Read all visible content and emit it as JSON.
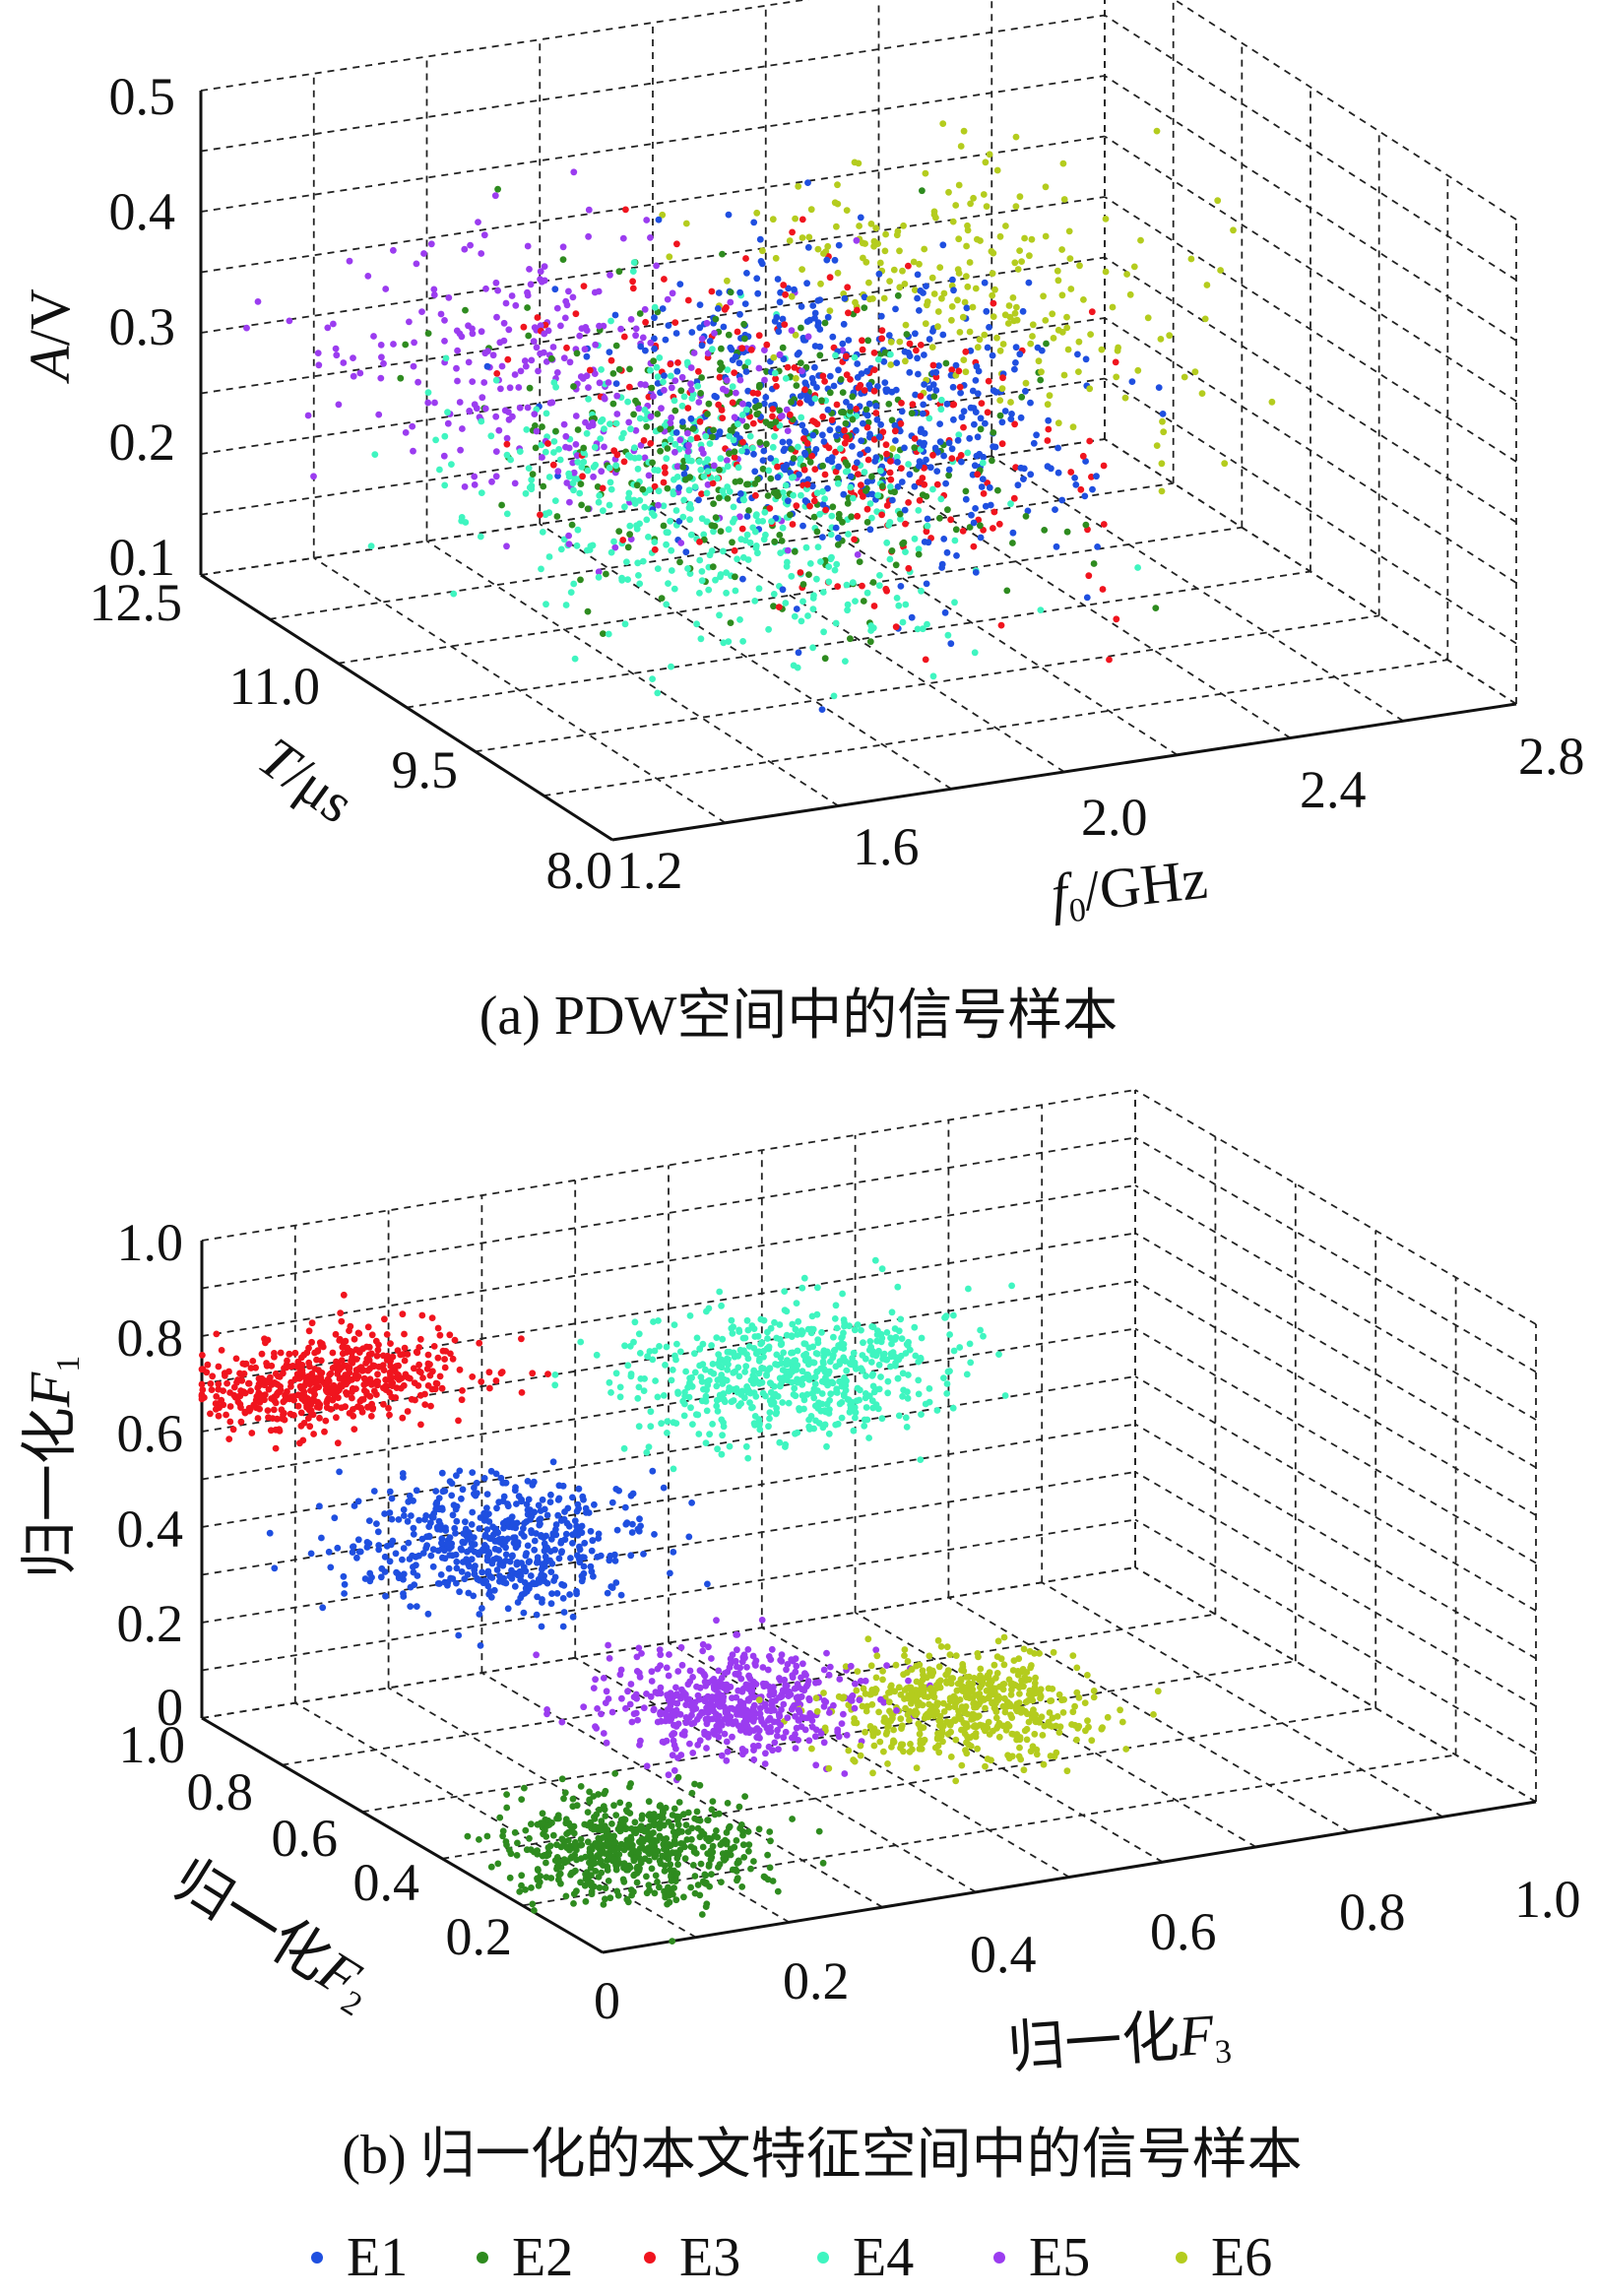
{
  "series": [
    {
      "key": "E1",
      "name": "E1",
      "color": "#1f4fe0"
    },
    {
      "key": "E2",
      "name": "E2",
      "color": "#2e8b1f"
    },
    {
      "key": "E3",
      "name": "E3",
      "color": "#f0141e"
    },
    {
      "key": "E4",
      "name": "E4",
      "color": "#3ff5c0"
    },
    {
      "key": "E5",
      "name": "E5",
      "color": "#9b3cf0"
    },
    {
      "key": "E6",
      "name": "E6",
      "color": "#b4cc1e"
    }
  ],
  "chart_data": [
    {
      "type": "scatter",
      "panel": "a",
      "caption": "(a) PDW空间中的信号样本",
      "x_axis": {
        "symbol": "f",
        "sub": "0",
        "unit": "/GHz",
        "ticks": [
          "1.2",
          "1.6",
          "2.0",
          "2.4",
          "2.8"
        ],
        "range": [
          1.2,
          2.8
        ]
      },
      "y_axis": {
        "symbol": "T",
        "unit": "/μs",
        "ticks": [
          "8.0",
          "9.5",
          "11.0",
          "12.5"
        ],
        "range": [
          8.0,
          12.5
        ]
      },
      "z_axis": {
        "symbol": "A",
        "unit": "/V",
        "ticks": [
          "0.1",
          "0.2",
          "0.3",
          "0.4",
          "0.5"
        ],
        "range": [
          0.1,
          0.5
        ]
      },
      "clusters": [
        {
          "series": "E1",
          "center": [
            2.05,
            10.6,
            0.27
          ],
          "spread": [
            0.16,
            0.8,
            0.045
          ],
          "n": 520
        },
        {
          "series": "E2",
          "center": [
            1.85,
            10.3,
            0.27
          ],
          "spread": [
            0.2,
            0.9,
            0.045
          ],
          "n": 330
        },
        {
          "series": "E3",
          "center": [
            1.95,
            10.4,
            0.27
          ],
          "spread": [
            0.18,
            0.9,
            0.045
          ],
          "n": 300
        },
        {
          "series": "E4",
          "center": [
            1.7,
            10.0,
            0.25
          ],
          "spread": [
            0.18,
            0.8,
            0.045
          ],
          "n": 500
        },
        {
          "series": "E5",
          "center": [
            1.65,
            11.2,
            0.29
          ],
          "spread": [
            0.18,
            0.8,
            0.045
          ],
          "n": 330
        },
        {
          "series": "E6",
          "center": [
            2.4,
            11.6,
            0.3
          ],
          "spread": [
            0.16,
            0.7,
            0.04
          ],
          "n": 240
        }
      ]
    },
    {
      "type": "scatter",
      "panel": "b",
      "caption": "(b) 归一化的本文特征空间中的信号样本",
      "x_axis": {
        "prefix": "归一化",
        "symbol": "F",
        "sub": "3",
        "ticks": [
          "0",
          "0.2",
          "0.4",
          "0.6",
          "0.8",
          "1.0"
        ],
        "range": [
          0,
          1
        ]
      },
      "y_axis": {
        "prefix": "归一化",
        "symbol": "F",
        "sub": "2",
        "ticks": [
          "0",
          "0.2",
          "0.4",
          "0.6",
          "0.8",
          "1.0"
        ],
        "range": [
          0,
          1
        ]
      },
      "z_axis": {
        "prefix": "归一化",
        "symbol": "F",
        "sub": "1",
        "ticks": [
          "0",
          "0.2",
          "0.4",
          "0.6",
          "0.8",
          "1.0"
        ],
        "range": [
          0,
          1
        ]
      },
      "clusters": [
        {
          "series": "E1",
          "center": [
            0.2,
            0.73,
            0.44
          ],
          "spread": [
            0.07,
            0.08,
            0.05
          ],
          "n": 560
        },
        {
          "series": "E2",
          "center": [
            0.12,
            0.2,
            0.08
          ],
          "spread": [
            0.06,
            0.07,
            0.04
          ],
          "n": 620
        },
        {
          "series": "E3",
          "center": [
            0.12,
            0.95,
            0.7
          ],
          "spread": [
            0.07,
            0.05,
            0.04
          ],
          "n": 540
        },
        {
          "series": "E4",
          "center": [
            0.55,
            0.8,
            0.65
          ],
          "spread": [
            0.08,
            0.08,
            0.05
          ],
          "n": 620
        },
        {
          "series": "E5",
          "center": [
            0.4,
            0.6,
            0.1
          ],
          "spread": [
            0.06,
            0.07,
            0.04
          ],
          "n": 540
        },
        {
          "series": "E6",
          "center": [
            0.6,
            0.5,
            0.08
          ],
          "spread": [
            0.06,
            0.07,
            0.04
          ],
          "n": 560
        }
      ]
    }
  ]
}
